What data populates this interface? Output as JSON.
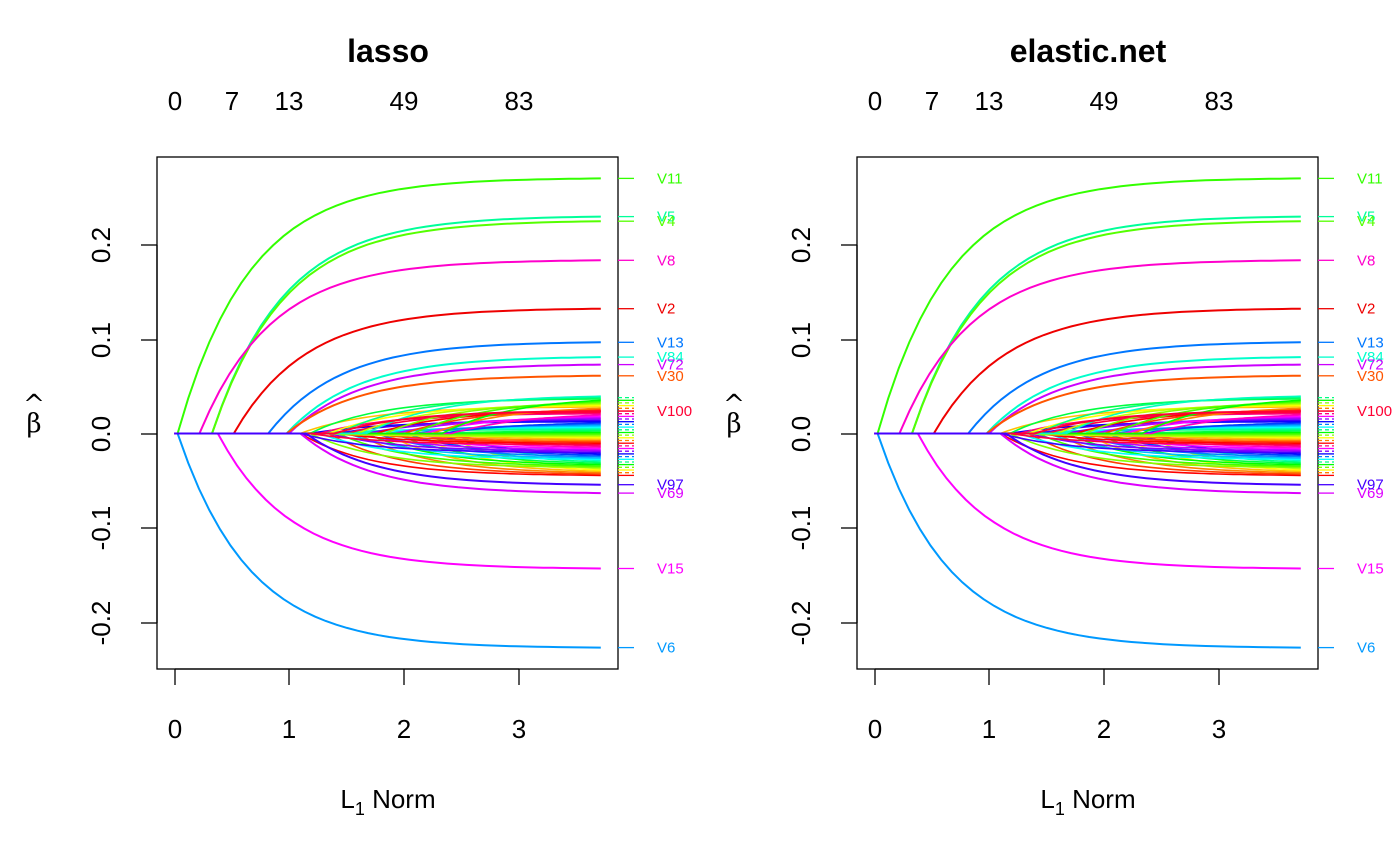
{
  "panels": [
    {
      "title": "lasso",
      "x_ticks": [
        "0",
        "1",
        "2",
        "3"
      ],
      "y_ticks": [
        "-0.2",
        "-0.1",
        "0.0",
        "0.1",
        "0.2"
      ],
      "top_ticks": [
        "0",
        "7",
        "13",
        "49",
        "83"
      ],
      "xlabel_main": "L",
      "xlabel_sub": "1",
      "xlabel_rest": " Norm",
      "ylabel": "β",
      "ylabel_hat": "^"
    },
    {
      "title": "elastic.net",
      "x_ticks": [
        "0",
        "1",
        "2",
        "3"
      ],
      "y_ticks": [
        "-0.2",
        "-0.1",
        "0.0",
        "0.1",
        "0.2"
      ],
      "top_ticks": [
        "0",
        "7",
        "13",
        "49",
        "83"
      ],
      "xlabel_main": "L",
      "xlabel_sub": "1",
      "xlabel_rest": " Norm",
      "ylabel": "β",
      "ylabel_hat": "^"
    }
  ],
  "chart_data": [
    {
      "type": "line",
      "title": "lasso",
      "xlabel": "L1 Norm",
      "ylabel": "β̂",
      "xlim": [
        -0.15,
        3.87
      ],
      "ylim": [
        -0.253,
        0.297
      ],
      "x_ticks": [
        0,
        1,
        2,
        3
      ],
      "y_ticks": [
        -0.2,
        -0.1,
        0.0,
        0.1,
        0.2
      ],
      "top_axis": {
        "x": [
          0,
          0.5,
          1.0,
          2.0,
          3.0
        ],
        "labels": [
          "0",
          "7",
          "13",
          "49",
          "83"
        ]
      },
      "x_max": 3.72,
      "series": [
        {
          "name": "V11",
          "color": "#33ff00",
          "start": 0.03,
          "end": 0.274
        },
        {
          "name": "V5",
          "color": "#00ff99",
          "start": 0.33,
          "end": 0.233
        },
        {
          "name": "V4",
          "color": "#55ff00",
          "start": 0.33,
          "end": 0.228
        },
        {
          "name": "V8",
          "color": "#ff00cc",
          "start": 0.22,
          "end": 0.186
        },
        {
          "name": "V2",
          "color": "#ee0000",
          "start": 0.52,
          "end": 0.134
        },
        {
          "name": "V13",
          "color": "#0077ff",
          "start": 0.82,
          "end": 0.098
        },
        {
          "name": "V84",
          "color": "#00ffcc",
          "start": 0.98,
          "end": 0.082
        },
        {
          "name": "V72",
          "color": "#cc00ff",
          "start": 1.0,
          "end": 0.074
        },
        {
          "name": "V30",
          "color": "#ff5500",
          "start": 0.98,
          "end": 0.062
        },
        {
          "name": "V100",
          "color": "#ff0033",
          "start": 1.4,
          "end": 0.024
        },
        {
          "name": "V6",
          "color": "#0099ff",
          "start": 0.03,
          "end": -0.23
        },
        {
          "name": "V15",
          "color": "#ff00ff",
          "start": 0.38,
          "end": -0.145
        },
        {
          "name": "V69",
          "color": "#dd00ff",
          "start": 1.1,
          "end": -0.064
        },
        {
          "name": "V97",
          "color": "#4400ff",
          "start": 1.15,
          "end": -0.055
        }
      ],
      "unlabeled_bundle": {
        "colors": [
          "#ff0000",
          "#ff4000",
          "#ff8000",
          "#ffbf00",
          "#ffff00",
          "#bfff00",
          "#80ff00",
          "#40ff00",
          "#00ff00",
          "#00ff40",
          "#00ff80",
          "#00ffbf",
          "#00ffff",
          "#00bfff",
          "#0080ff",
          "#0040ff",
          "#0000ff",
          "#4000ff",
          "#8000ff",
          "#bf00ff",
          "#ff00ff",
          "#ff00bf",
          "#ff0080",
          "#ff0040"
        ]
      }
    },
    {
      "type": "line",
      "title": "elastic.net",
      "xlabel": "L1 Norm",
      "ylabel": "β̂",
      "xlim": [
        -0.15,
        3.87
      ],
      "ylim": [
        -0.253,
        0.297
      ],
      "x_ticks": [
        0,
        1,
        2,
        3
      ],
      "y_ticks": [
        -0.2,
        -0.1,
        0.0,
        0.1,
        0.2
      ],
      "top_axis": {
        "x": [
          0,
          0.5,
          1.0,
          2.0,
          3.0
        ],
        "labels": [
          "0",
          "7",
          "13",
          "49",
          "83"
        ]
      },
      "x_max": 3.72,
      "series": [
        {
          "name": "V11",
          "color": "#33ff00",
          "start": 0.03,
          "end": 0.274
        },
        {
          "name": "V5",
          "color": "#00ff99",
          "start": 0.33,
          "end": 0.233
        },
        {
          "name": "V4",
          "color": "#55ff00",
          "start": 0.33,
          "end": 0.228
        },
        {
          "name": "V8",
          "color": "#ff00cc",
          "start": 0.22,
          "end": 0.186
        },
        {
          "name": "V2",
          "color": "#ee0000",
          "start": 0.52,
          "end": 0.134
        },
        {
          "name": "V13",
          "color": "#0077ff",
          "start": 0.82,
          "end": 0.098
        },
        {
          "name": "V84",
          "color": "#00ffcc",
          "start": 0.98,
          "end": 0.082
        },
        {
          "name": "V72",
          "color": "#cc00ff",
          "start": 1.0,
          "end": 0.074
        },
        {
          "name": "V30",
          "color": "#ff5500",
          "start": 0.98,
          "end": 0.062
        },
        {
          "name": "V100",
          "color": "#ff0033",
          "start": 1.4,
          "end": 0.024
        },
        {
          "name": "V6",
          "color": "#0099ff",
          "start": 0.03,
          "end": -0.23
        },
        {
          "name": "V15",
          "color": "#ff00ff",
          "start": 0.38,
          "end": -0.145
        },
        {
          "name": "V69",
          "color": "#dd00ff",
          "start": 1.1,
          "end": -0.064
        },
        {
          "name": "V97",
          "color": "#4400ff",
          "start": 1.15,
          "end": -0.055
        }
      ],
      "unlabeled_bundle": {
        "colors": [
          "#ff0000",
          "#ff4000",
          "#ff8000",
          "#ffbf00",
          "#ffff00",
          "#bfff00",
          "#80ff00",
          "#40ff00",
          "#00ff00",
          "#00ff40",
          "#00ff80",
          "#00ffbf",
          "#00ffff",
          "#00bfff",
          "#0080ff",
          "#0040ff",
          "#0000ff",
          "#4000ff",
          "#8000ff",
          "#bf00ff",
          "#ff00ff",
          "#ff00bf",
          "#ff0080",
          "#ff0040"
        ]
      }
    }
  ]
}
